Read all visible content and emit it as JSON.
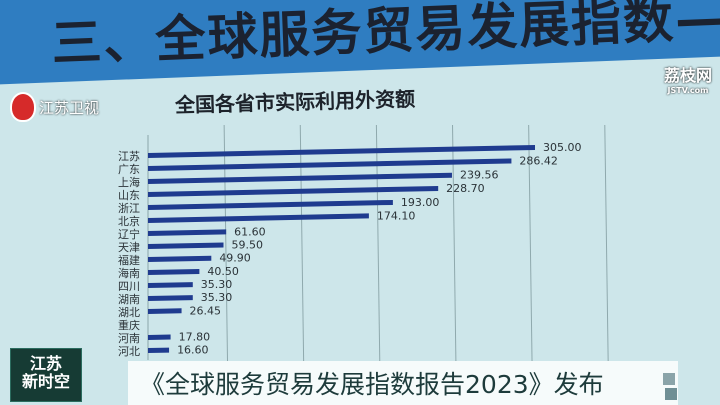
{
  "banner": {
    "title": "三、全球服务贸易发展指数—"
  },
  "overlay": {
    "station_name": "江苏卫视",
    "website_name": "荔枝网",
    "website_domain": "JSTV.com",
    "show_logo": [
      "江苏",
      "新时空"
    ],
    "ticker": "《全球服务贸易发展指数报告2023》发布"
  },
  "chart_data": {
    "type": "bar",
    "orientation": "horizontal",
    "title": "全国各省市实际利用外资额",
    "categories": [
      "江苏",
      "广东",
      "上海",
      "山东",
      "浙江",
      "北京",
      "辽宁",
      "天津",
      "福建",
      "海南",
      "四川",
      "湖南",
      "湖北",
      "重庆",
      "河南",
      "河北"
    ],
    "values": [
      305.0,
      286.42,
      239.56,
      228.7,
      193.0,
      174.1,
      61.6,
      59.5,
      49.9,
      40.5,
      35.3,
      35.3,
      26.45,
      null,
      17.8,
      16.6
    ],
    "value_labels": [
      "305.00",
      "286.42",
      "239.56",
      "228.70",
      "193.00",
      "174.10",
      "61.60",
      "59.50",
      "49.90",
      "40.50",
      "35.30",
      "35.30",
      "26.45",
      "",
      "17.80",
      "16.60"
    ],
    "bar_color": "#1f3b8f",
    "grid": true,
    "xlim": [
      0,
      360
    ]
  }
}
